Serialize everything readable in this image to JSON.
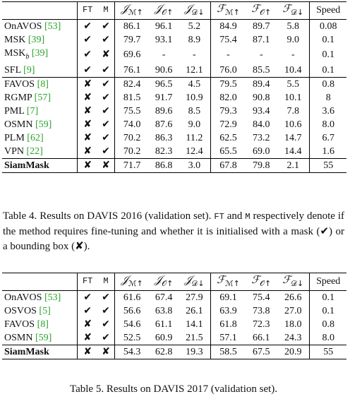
{
  "table4": {
    "headers": {
      "method": "",
      "ft": "FT",
      "m": "M",
      "jm": "𝒥",
      "jm_sub": "ℳ↑",
      "jo": "𝒥",
      "jo_sub": "𝒪↑",
      "jd": "𝒥",
      "jd_sub": "𝒟↓",
      "fm": "ℱ",
      "fm_sub": "ℳ↑",
      "fo": "ℱ",
      "fo_sub": "𝒪↑",
      "fd": "ℱ",
      "fd_sub": "𝒟↓",
      "speed": "Speed"
    },
    "rows": [
      {
        "name": "OnAVOS",
        "cite": "[53]",
        "ft": "✔",
        "m": "✔",
        "jm": "86.1",
        "jo": "96.1",
        "jd": "5.2",
        "fm": "84.9",
        "fo": "89.7",
        "fd": "5.8",
        "speed": "0.08"
      },
      {
        "name": "MSK",
        "cite": "[39]",
        "ft": "✔",
        "m": "✔",
        "jm": "79.7",
        "jo": "93.1",
        "jd": "8.9",
        "fm": "75.4",
        "fo": "87.1",
        "fd": "9.0",
        "speed": "0.1"
      },
      {
        "name": "MSK",
        "name_sub": "b",
        "cite": "[39]",
        "ft": "✔",
        "m": "✘",
        "jm": "69.6",
        "jo": "-",
        "jd": "-",
        "fm": "-",
        "fo": "-",
        "fd": "-",
        "speed": "0.1"
      },
      {
        "name": "SFL",
        "cite": "[9]",
        "ft": "✔",
        "m": "✔",
        "jm": "76.1",
        "jo": "90.6",
        "jd": "12.1",
        "fm": "76.0",
        "fo": "85.5",
        "fd": "10.4",
        "speed": "0.1"
      },
      {
        "name": "FAVOS",
        "cite": "[8]",
        "ft": "✘",
        "m": "✔",
        "jm": "82.4",
        "jo": "96.5",
        "jd": "4.5",
        "fm": "79.5",
        "fo": "89.4",
        "fd": "5.5",
        "speed": "0.8"
      },
      {
        "name": "RGMP",
        "cite": "[57]",
        "ft": "✘",
        "m": "✔",
        "jm": "81.5",
        "jo": "91.7",
        "jd": "10.9",
        "fm": "82.0",
        "fo": "90.8",
        "fd": "10.1",
        "speed": "8"
      },
      {
        "name": "PML",
        "cite": "[7]",
        "ft": "✘",
        "m": "✔",
        "jm": "75.5",
        "jo": "89.6",
        "jd": "8.5",
        "fm": "79.3",
        "fo": "93.4",
        "fd": "7.8",
        "speed": "3.6"
      },
      {
        "name": "OSMN",
        "cite": "[59]",
        "ft": "✘",
        "m": "✔",
        "jm": "74.0",
        "jo": "87.6",
        "jd": "9.0",
        "fm": "72.9",
        "fo": "84.0",
        "fd": "10.6",
        "speed": "8.0"
      },
      {
        "name": "PLM",
        "cite": "[62]",
        "ft": "✘",
        "m": "✔",
        "jm": "70.2",
        "jo": "86.3",
        "jd": "11.2",
        "fm": "62.5",
        "fo": "73.2",
        "fd": "14.7",
        "speed": "6.7"
      },
      {
        "name": "VPN",
        "cite": "[22]",
        "ft": "✘",
        "m": "✔",
        "jm": "70.2",
        "jo": "82.3",
        "jd": "12.4",
        "fm": "65.5",
        "fo": "69.0",
        "fd": "14.4",
        "speed": "1.6"
      },
      {
        "name": "SiamMask",
        "cite": "",
        "ft": "✘",
        "m": "✘",
        "jm": "71.7",
        "jo": "86.8",
        "jd": "3.0",
        "fm": "67.8",
        "fo": "79.8",
        "fd": "2.1",
        "speed": "55"
      }
    ],
    "caption_label": "Table 4. Results on DAVIS 2016 (validation set).",
    "caption_ft": "FT",
    "caption_and": "and",
    "caption_m": "M",
    "caption_rest": "respectively denote if the method requires fine-tuning and whether it is initialised with a mask (✔) or a bounding box (✘)."
  },
  "table5": {
    "rows": [
      {
        "name": "OnAVOS",
        "cite": "[53]",
        "ft": "✔",
        "m": "✔",
        "jm": "61.6",
        "jo": "67.4",
        "jd": "27.9",
        "fm": "69.1",
        "fo": "75.4",
        "fd": "26.6",
        "speed": "0.1"
      },
      {
        "name": "OSVOS",
        "cite": "[5]",
        "ft": "✔",
        "m": "✔",
        "jm": "56.6",
        "jo": "63.8",
        "jd": "26.1",
        "fm": "63.9",
        "fo": "73.8",
        "fd": "27.0",
        "speed": "0.1"
      },
      {
        "name": "FAVOS",
        "cite": "[8]",
        "ft": "✘",
        "m": "✔",
        "jm": "54.6",
        "jo": "61.1",
        "jd": "14.1",
        "fm": "61.8",
        "fo": "72.3",
        "fd": "18.0",
        "speed": "0.8"
      },
      {
        "name": "OSMN",
        "cite": "[59]",
        "ft": "✘",
        "m": "✔",
        "jm": "52.5",
        "jo": "60.9",
        "jd": "21.5",
        "fm": "57.1",
        "fo": "66.1",
        "fd": "24.3",
        "speed": "8.0"
      },
      {
        "name": "SiamMask",
        "cite": "",
        "ft": "✘",
        "m": "✘",
        "jm": "54.3",
        "jo": "62.8",
        "jd": "19.3",
        "fm": "58.5",
        "fo": "67.5",
        "fd": "20.9",
        "speed": "55"
      }
    ],
    "caption": "Table 5. Results on DAVIS 2017 (validation set)."
  }
}
